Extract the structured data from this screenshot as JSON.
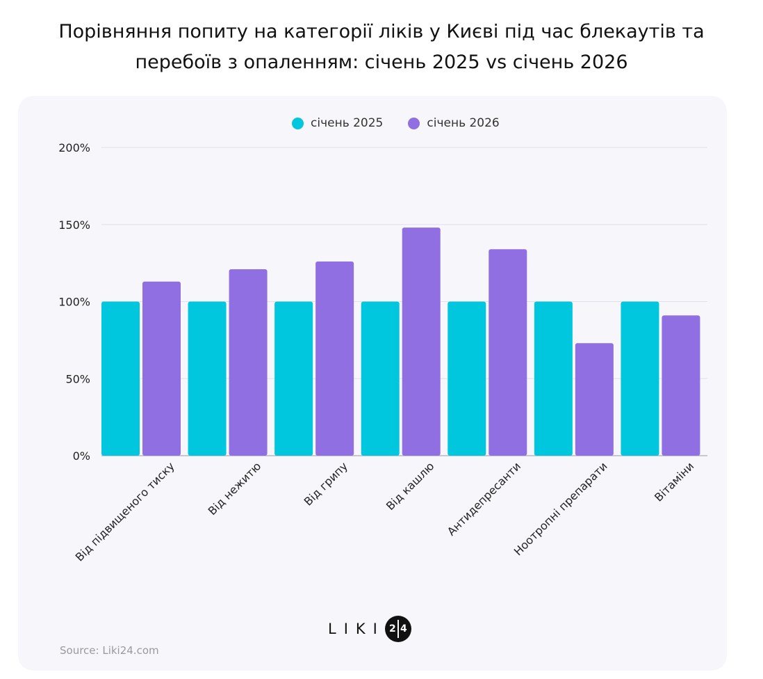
{
  "title": {
    "line1": "Порівняння попиту на категорії ліків у Києві під час блекаутів та",
    "line2": "перебоїв з опаленням: січень 2025 vs січень 2026"
  },
  "colors": {
    "series_2025": "#00c7dd",
    "series_2026": "#8f6fe1",
    "grid": "#e2e0ea",
    "baseline": "#b9b7c2",
    "card_bg": "#f7f6fb"
  },
  "legend": {
    "items": [
      {
        "label": "січень 2025",
        "color": "#00c7dd"
      },
      {
        "label": "січень 2026",
        "color": "#8f6fe1"
      }
    ]
  },
  "chart_data": {
    "type": "bar",
    "categories": [
      "Від підвищеного тиску",
      "Від нежитю",
      "Від грипу",
      "Від кашлю",
      "Антидепресанти",
      "Ноотропні препарати",
      "Вітаміни"
    ],
    "series": [
      {
        "name": "січень 2025",
        "values": [
          100,
          100,
          100,
          100,
          100,
          100,
          100
        ]
      },
      {
        "name": "січень 2026",
        "values": [
          113,
          121,
          126,
          148,
          134,
          73,
          91
        ]
      }
    ],
    "y_ticks": [
      "0%",
      "50%",
      "100%",
      "150%",
      "200%"
    ],
    "y_tick_values": [
      0,
      50,
      100,
      150,
      200
    ],
    "ylim": [
      0,
      200
    ],
    "grid": true,
    "legend_position": "top-center",
    "xlabel": "",
    "ylabel": ""
  },
  "branding": {
    "logo_text": "LIKI",
    "logo_digit_1": "2",
    "logo_digit_2": "4",
    "source": "Source: Liki24.com"
  }
}
